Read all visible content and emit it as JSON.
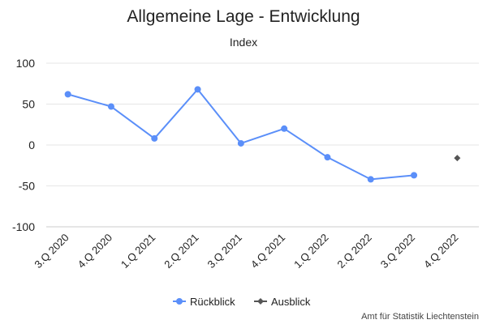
{
  "chart_data": {
    "type": "line",
    "title": "Allgemeine Lage - Entwicklung",
    "subtitle": "Index",
    "xlabel": "",
    "ylabel": "",
    "ylim": [
      -100,
      100
    ],
    "yticks": [
      "100",
      "50",
      "0",
      "-50",
      "-100"
    ],
    "ytick_values": [
      100,
      50,
      0,
      -50,
      -100
    ],
    "categories": [
      "3.Q 2020",
      "4.Q 2020",
      "1.Q 2021",
      "2.Q 2021",
      "3.Q 2021",
      "4.Q 2021",
      "1.Q 2022",
      "2.Q 2022",
      "3.Q 2022",
      "4.Q 2022"
    ],
    "series": [
      {
        "name": "Rückblick",
        "color": "#5b8ff9",
        "marker": "circle",
        "values": [
          62,
          47,
          8,
          68,
          2,
          20,
          -15,
          -42,
          -37,
          null
        ]
      },
      {
        "name": "Ausblick",
        "color": "#555555",
        "marker": "diamond",
        "values": [
          null,
          null,
          null,
          null,
          null,
          null,
          null,
          null,
          null,
          -16
        ]
      }
    ],
    "grid": true,
    "legend": "bottom-center",
    "credit": "Amt für Statistik Liechtenstein"
  }
}
